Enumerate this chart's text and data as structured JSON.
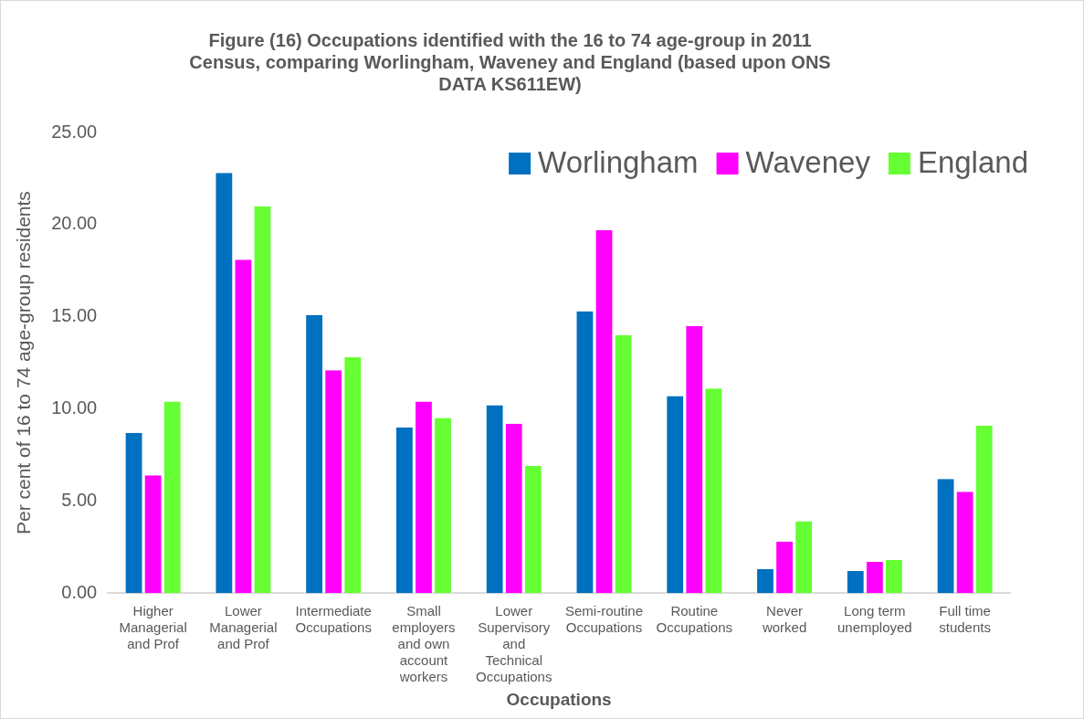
{
  "chart_data": {
    "type": "bar",
    "title": "Figure (16) Occupations identified with the 16 to 74 age-group in 2011 Census, comparing Worlingham, Waveney and England (based upon ONS DATA KS611EW)",
    "xlabel": "Occupations",
    "ylabel": "Per cent of 16 to 74 age-group residents",
    "categories": [
      "Higher Managerial and Prof",
      "Lower Managerial and Prof",
      "Intermediate Occupations",
      "Small employers and own account workers",
      "Lower Supervisory and Technical Occupations",
      "Semi-routine Occupations",
      "Routine Occupations",
      "Never worked",
      "Long term unemployed",
      "Full time students"
    ],
    "series": [
      {
        "name": "Worlingham",
        "color": "#0070c0",
        "values": [
          8.7,
          22.8,
          15.1,
          9.0,
          10.2,
          15.3,
          10.7,
          1.3,
          1.2,
          6.2
        ]
      },
      {
        "name": "Waveney",
        "color": "#ff00ff",
        "values": [
          6.4,
          18.1,
          12.1,
          10.4,
          9.2,
          19.7,
          14.5,
          2.8,
          1.7,
          5.5
        ]
      },
      {
        "name": "England",
        "color": "#66ff33",
        "values": [
          10.4,
          21.0,
          12.8,
          9.5,
          6.9,
          14.0,
          11.1,
          3.9,
          1.8,
          9.1
        ]
      }
    ],
    "ylim": [
      0,
      25
    ],
    "yticks": [
      {
        "value": 0,
        "label": "0.00"
      },
      {
        "value": 5,
        "label": "5.00"
      },
      {
        "value": 10,
        "label": "10.00"
      },
      {
        "value": 15,
        "label": "15.00"
      },
      {
        "value": 20,
        "label": "20.00"
      },
      {
        "value": 25,
        "label": "25.00"
      }
    ],
    "grid": false,
    "legend": "top right"
  }
}
